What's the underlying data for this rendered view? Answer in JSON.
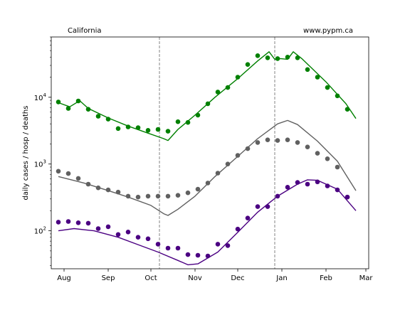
{
  "chart_data": {
    "type": "scatter",
    "annotations": {
      "left": "California",
      "right": "www.pypm.ca"
    },
    "ylabel": "daily cases / hosp / deaths",
    "xlabel": "",
    "y_scale": "log",
    "x_range": [
      "2020-07-23",
      "2021-03-03"
    ],
    "y_range": [
      27,
      80000
    ],
    "x_ticks": [
      {
        "date": "2020-08-01",
        "label": "Aug"
      },
      {
        "date": "2020-09-01",
        "label": "Sep"
      },
      {
        "date": "2020-10-01",
        "label": "Oct"
      },
      {
        "date": "2020-11-01",
        "label": "Nov"
      },
      {
        "date": "2020-12-01",
        "label": "Dec"
      },
      {
        "date": "2021-01-01",
        "label": "Jan"
      },
      {
        "date": "2021-02-01",
        "label": "Feb"
      },
      {
        "date": "2021-03-01",
        "label": "Mar"
      }
    ],
    "y_ticks": [
      {
        "value": 100,
        "label": "10^2"
      },
      {
        "value": 1000,
        "label": "10^3"
      },
      {
        "value": 10000,
        "label": "10^4"
      }
    ],
    "vertical_lines": [
      "2020-10-07",
      "2020-12-27"
    ],
    "grid": false,
    "series": [
      {
        "color": "#008000",
        "points": [
          [
            "2020-07-28",
            8500
          ],
          [
            "2020-08-04",
            6800
          ],
          [
            "2020-08-11",
            8800
          ],
          [
            "2020-08-18",
            6600
          ],
          [
            "2020-08-25",
            5200
          ],
          [
            "2020-09-01",
            4700
          ],
          [
            "2020-09-08",
            3400
          ],
          [
            "2020-09-15",
            3600
          ],
          [
            "2020-09-22",
            3500
          ],
          [
            "2020-09-29",
            3200
          ],
          [
            "2020-10-06",
            3300
          ],
          [
            "2020-10-13",
            3100
          ],
          [
            "2020-10-20",
            4300
          ],
          [
            "2020-10-27",
            4200
          ],
          [
            "2020-11-03",
            5400
          ],
          [
            "2020-11-10",
            8000
          ],
          [
            "2020-11-17",
            12000
          ],
          [
            "2020-11-24",
            14000
          ],
          [
            "2020-12-01",
            20000
          ],
          [
            "2020-12-08",
            31000
          ],
          [
            "2020-12-15",
            42000
          ],
          [
            "2020-12-22",
            39000
          ],
          [
            "2020-12-29",
            38000
          ],
          [
            "2021-01-05",
            40000
          ],
          [
            "2021-01-12",
            39000
          ],
          [
            "2021-01-19",
            26000
          ],
          [
            "2021-01-26",
            20000
          ],
          [
            "2021-02-02",
            14000
          ],
          [
            "2021-02-09",
            10500
          ],
          [
            "2021-02-16",
            6600
          ]
        ],
        "curve": [
          [
            "2020-07-28",
            8300
          ],
          [
            "2020-08-05",
            7200
          ],
          [
            "2020-08-12",
            8900
          ],
          [
            "2020-08-18",
            6800
          ],
          [
            "2020-09-01",
            4900
          ],
          [
            "2020-09-15",
            3700
          ],
          [
            "2020-09-29",
            2900
          ],
          [
            "2020-10-10",
            2400
          ],
          [
            "2020-10-13",
            2250
          ],
          [
            "2020-10-20",
            3300
          ],
          [
            "2020-11-01",
            5400
          ],
          [
            "2020-11-15",
            10000
          ],
          [
            "2020-12-01",
            19000
          ],
          [
            "2020-12-15",
            35000
          ],
          [
            "2020-12-23",
            48000
          ],
          [
            "2020-12-27",
            37000
          ],
          [
            "2020-12-31",
            38000
          ],
          [
            "2021-01-05",
            37000
          ],
          [
            "2021-01-09",
            48000
          ],
          [
            "2021-01-15",
            38000
          ],
          [
            "2021-02-01",
            17000
          ],
          [
            "2021-02-15",
            8000
          ],
          [
            "2021-02-22",
            4800
          ]
        ]
      },
      {
        "color": "#606060",
        "points": [
          [
            "2020-07-28",
            780
          ],
          [
            "2020-08-04",
            720
          ],
          [
            "2020-08-11",
            610
          ],
          [
            "2020-08-18",
            500
          ],
          [
            "2020-08-25",
            440
          ],
          [
            "2020-09-01",
            410
          ],
          [
            "2020-09-08",
            380
          ],
          [
            "2020-09-15",
            330
          ],
          [
            "2020-09-22",
            320
          ],
          [
            "2020-09-29",
            330
          ],
          [
            "2020-10-06",
            330
          ],
          [
            "2020-10-13",
            330
          ],
          [
            "2020-10-20",
            340
          ],
          [
            "2020-10-27",
            370
          ],
          [
            "2020-11-03",
            420
          ],
          [
            "2020-11-10",
            520
          ],
          [
            "2020-11-17",
            730
          ],
          [
            "2020-11-24",
            1000
          ],
          [
            "2020-12-01",
            1350
          ],
          [
            "2020-12-08",
            1700
          ],
          [
            "2020-12-15",
            2100
          ],
          [
            "2020-12-22",
            2300
          ],
          [
            "2020-12-29",
            2250
          ],
          [
            "2021-01-05",
            2300
          ],
          [
            "2021-01-12",
            2100
          ],
          [
            "2021-01-19",
            1800
          ],
          [
            "2021-01-26",
            1450
          ],
          [
            "2021-02-02",
            1200
          ],
          [
            "2021-02-09",
            900
          ],
          [
            "2021-02-16",
            320
          ]
        ],
        "curve": [
          [
            "2020-07-28",
            650
          ],
          [
            "2020-08-15",
            520
          ],
          [
            "2020-09-01",
            400
          ],
          [
            "2020-09-15",
            320
          ],
          [
            "2020-10-01",
            240
          ],
          [
            "2020-10-10",
            180
          ],
          [
            "2020-10-13",
            170
          ],
          [
            "2020-10-20",
            210
          ],
          [
            "2020-11-01",
            330
          ],
          [
            "2020-11-15",
            650
          ],
          [
            "2020-12-01",
            1300
          ],
          [
            "2020-12-15",
            2400
          ],
          [
            "2020-12-29",
            4000
          ],
          [
            "2021-01-05",
            4500
          ],
          [
            "2021-01-12",
            3900
          ],
          [
            "2021-01-26",
            2200
          ],
          [
            "2021-02-09",
            1100
          ],
          [
            "2021-02-22",
            400
          ]
        ]
      },
      {
        "color": "#4b0082",
        "points": [
          [
            "2020-07-28",
            135
          ],
          [
            "2020-08-04",
            138
          ],
          [
            "2020-08-11",
            132
          ],
          [
            "2020-08-18",
            130
          ],
          [
            "2020-08-25",
            108
          ],
          [
            "2020-09-01",
            115
          ],
          [
            "2020-09-08",
            88
          ],
          [
            "2020-09-15",
            96
          ],
          [
            "2020-09-22",
            80
          ],
          [
            "2020-09-29",
            76
          ],
          [
            "2020-10-06",
            63
          ],
          [
            "2020-10-13",
            55
          ],
          [
            "2020-10-20",
            55
          ],
          [
            "2020-10-27",
            44
          ],
          [
            "2020-11-03",
            43
          ],
          [
            "2020-11-10",
            42
          ],
          [
            "2020-11-17",
            63
          ],
          [
            "2020-11-24",
            60
          ],
          [
            "2020-12-01",
            106
          ],
          [
            "2020-12-08",
            155
          ],
          [
            "2020-12-15",
            230
          ],
          [
            "2020-12-22",
            230
          ],
          [
            "2020-12-29",
            330
          ],
          [
            "2021-01-05",
            450
          ],
          [
            "2021-01-12",
            530
          ],
          [
            "2021-01-19",
            500
          ],
          [
            "2021-01-26",
            540
          ],
          [
            "2021-02-02",
            470
          ],
          [
            "2021-02-09",
            410
          ],
          [
            "2021-02-16",
            320
          ]
        ],
        "curve": [
          [
            "2020-07-28",
            100
          ],
          [
            "2020-08-08",
            108
          ],
          [
            "2020-08-22",
            100
          ],
          [
            "2020-09-08",
            80
          ],
          [
            "2020-09-22",
            62
          ],
          [
            "2020-10-06",
            48
          ],
          [
            "2020-10-20",
            36
          ],
          [
            "2020-10-27",
            31
          ],
          [
            "2020-11-03",
            32
          ],
          [
            "2020-11-17",
            48
          ],
          [
            "2020-12-01",
            95
          ],
          [
            "2020-12-15",
            190
          ],
          [
            "2020-12-29",
            330
          ],
          [
            "2021-01-12",
            500
          ],
          [
            "2021-01-19",
            580
          ],
          [
            "2021-01-26",
            570
          ],
          [
            "2021-02-09",
            420
          ],
          [
            "2021-02-22",
            200
          ]
        ]
      }
    ]
  }
}
